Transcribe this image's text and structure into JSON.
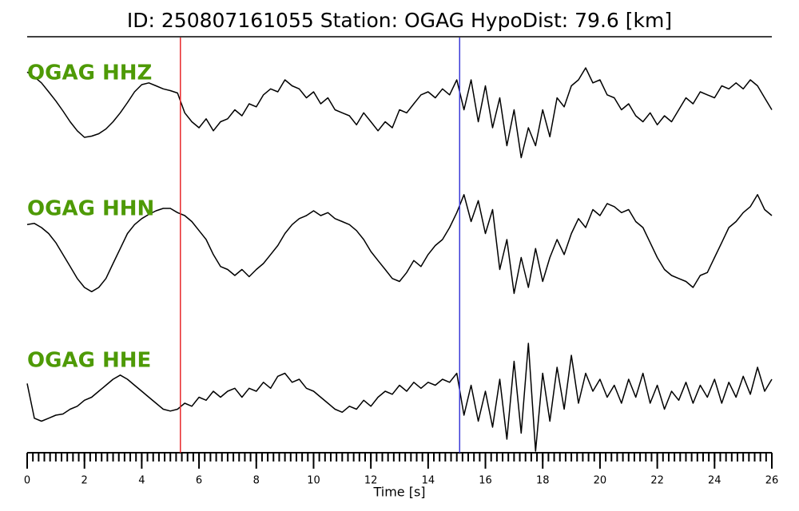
{
  "chart_data": {
    "type": "line",
    "title": "ID: 250807161055   Station: OGAG   HypoDist:    79.6 [km]",
    "xlabel": "Time [s]",
    "xlim": [
      0,
      26
    ],
    "xticks": [
      0,
      2,
      4,
      6,
      8,
      10,
      12,
      14,
      16,
      18,
      20,
      22,
      24,
      26
    ],
    "xminor": 0.2,
    "ylim": [
      -1,
      1
    ],
    "label_color": "#4e9a06",
    "picks": [
      {
        "time": 5.35,
        "color": "#e8282b"
      },
      {
        "time": 15.1,
        "color": "#3a3ad8"
      }
    ],
    "x": [
      0,
      0.25,
      0.5,
      0.75,
      1,
      1.25,
      1.5,
      1.75,
      2,
      2.25,
      2.5,
      2.75,
      3,
      3.25,
      3.5,
      3.75,
      4,
      4.25,
      4.5,
      4.75,
      5,
      5.25,
      5.5,
      5.75,
      6,
      6.25,
      6.5,
      6.75,
      7,
      7.25,
      7.5,
      7.75,
      8,
      8.25,
      8.5,
      8.75,
      9,
      9.25,
      9.5,
      9.75,
      10,
      10.25,
      10.5,
      10.75,
      11,
      11.25,
      11.5,
      11.75,
      12,
      12.25,
      12.5,
      12.75,
      13,
      13.25,
      13.5,
      13.75,
      14,
      14.25,
      14.5,
      14.75,
      15,
      15.25,
      15.5,
      15.75,
      16,
      16.25,
      16.5,
      16.75,
      17,
      17.25,
      17.5,
      17.75,
      18,
      18.25,
      18.5,
      18.75,
      19,
      19.25,
      19.5,
      19.75,
      20,
      20.25,
      20.5,
      20.75,
      21,
      21.25,
      21.5,
      21.75,
      22,
      22.25,
      22.5,
      22.75,
      23,
      23.25,
      23.5,
      23.75,
      24,
      24.25,
      24.5,
      24.75,
      25,
      25.25,
      25.5,
      25.75,
      26
    ],
    "series": [
      {
        "name": "OGAG HHZ",
        "color": "#000000",
        "values": [
          0.73,
          0.65,
          0.55,
          0.4,
          0.25,
          0.08,
          -0.1,
          -0.25,
          -0.36,
          -0.34,
          -0.3,
          -0.22,
          -0.1,
          0.05,
          0.22,
          0.4,
          0.52,
          0.55,
          0.5,
          0.45,
          0.42,
          0.38,
          0.05,
          -0.1,
          -0.2,
          -0.05,
          -0.25,
          -0.1,
          -0.05,
          0.1,
          0.0,
          0.2,
          0.15,
          0.35,
          0.45,
          0.4,
          0.6,
          0.5,
          0.45,
          0.3,
          0.4,
          0.2,
          0.3,
          0.1,
          0.05,
          0.0,
          -0.15,
          0.05,
          -0.1,
          -0.25,
          -0.1,
          -0.2,
          0.1,
          0.05,
          0.2,
          0.35,
          0.4,
          0.3,
          0.45,
          0.35,
          0.6,
          0.1,
          0.6,
          -0.1,
          0.5,
          -0.2,
          0.3,
          -0.5,
          0.1,
          -0.7,
          -0.2,
          -0.5,
          0.1,
          -0.35,
          0.3,
          0.15,
          0.5,
          0.6,
          0.8,
          0.55,
          0.6,
          0.35,
          0.3,
          0.1,
          0.2,
          0.0,
          -0.1,
          0.05,
          -0.15,
          0.0,
          -0.1,
          0.1,
          0.3,
          0.2,
          0.4,
          0.35,
          0.3,
          0.5,
          0.45,
          0.55,
          0.45,
          0.6,
          0.5,
          0.3,
          0.1
        ]
      },
      {
        "name": "OGAG HHN",
        "color": "#000000",
        "values": [
          0.45,
          0.47,
          0.4,
          0.3,
          0.15,
          -0.05,
          -0.25,
          -0.45,
          -0.6,
          -0.67,
          -0.6,
          -0.45,
          -0.2,
          0.05,
          0.3,
          0.45,
          0.55,
          0.62,
          0.68,
          0.72,
          0.72,
          0.65,
          0.6,
          0.5,
          0.35,
          0.2,
          -0.05,
          -0.25,
          -0.3,
          -0.4,
          -0.3,
          -0.42,
          -0.3,
          -0.2,
          -0.05,
          0.1,
          0.3,
          0.45,
          0.55,
          0.6,
          0.68,
          0.6,
          0.65,
          0.55,
          0.5,
          0.45,
          0.35,
          0.2,
          0.0,
          -0.15,
          -0.3,
          -0.45,
          -0.5,
          -0.35,
          -0.15,
          -0.25,
          -0.05,
          0.1,
          0.2,
          0.4,
          0.65,
          0.95,
          0.5,
          0.85,
          0.3,
          0.7,
          -0.3,
          0.2,
          -0.7,
          -0.1,
          -0.6,
          0.05,
          -0.5,
          -0.1,
          0.2,
          -0.05,
          0.3,
          0.55,
          0.4,
          0.7,
          0.6,
          0.8,
          0.75,
          0.65,
          0.7,
          0.5,
          0.4,
          0.15,
          -0.1,
          -0.3,
          -0.4,
          -0.45,
          -0.5,
          -0.6,
          -0.4,
          -0.35,
          -0.1,
          0.15,
          0.4,
          0.5,
          0.65,
          0.75,
          0.95,
          0.7,
          0.6
        ]
      },
      {
        "name": "OGAG HHE",
        "color": "#000000",
        "values": [
          0.33,
          -0.25,
          -0.3,
          -0.25,
          -0.2,
          -0.18,
          -0.1,
          -0.05,
          0.05,
          0.1,
          0.2,
          0.3,
          0.4,
          0.47,
          0.4,
          0.3,
          0.2,
          0.1,
          0.0,
          -0.1,
          -0.13,
          -0.1,
          0.0,
          -0.05,
          0.1,
          0.05,
          0.2,
          0.1,
          0.2,
          0.25,
          0.1,
          0.25,
          0.2,
          0.35,
          0.25,
          0.45,
          0.5,
          0.35,
          0.4,
          0.25,
          0.2,
          0.1,
          0.0,
          -0.1,
          -0.15,
          -0.05,
          -0.1,
          0.05,
          -0.05,
          0.1,
          0.2,
          0.15,
          0.3,
          0.2,
          0.35,
          0.25,
          0.35,
          0.3,
          0.4,
          0.35,
          0.5,
          -0.2,
          0.3,
          -0.3,
          0.2,
          -0.4,
          0.4,
          -0.6,
          0.7,
          -0.5,
          1.0,
          -0.8,
          0.5,
          -0.3,
          0.6,
          -0.1,
          0.8,
          0.0,
          0.5,
          0.2,
          0.4,
          0.1,
          0.3,
          0.0,
          0.4,
          0.1,
          0.5,
          0.0,
          0.3,
          -0.1,
          0.2,
          0.05,
          0.35,
          0.0,
          0.3,
          0.1,
          0.4,
          0.0,
          0.35,
          0.1,
          0.45,
          0.15,
          0.6,
          0.2,
          0.4
        ]
      }
    ]
  }
}
